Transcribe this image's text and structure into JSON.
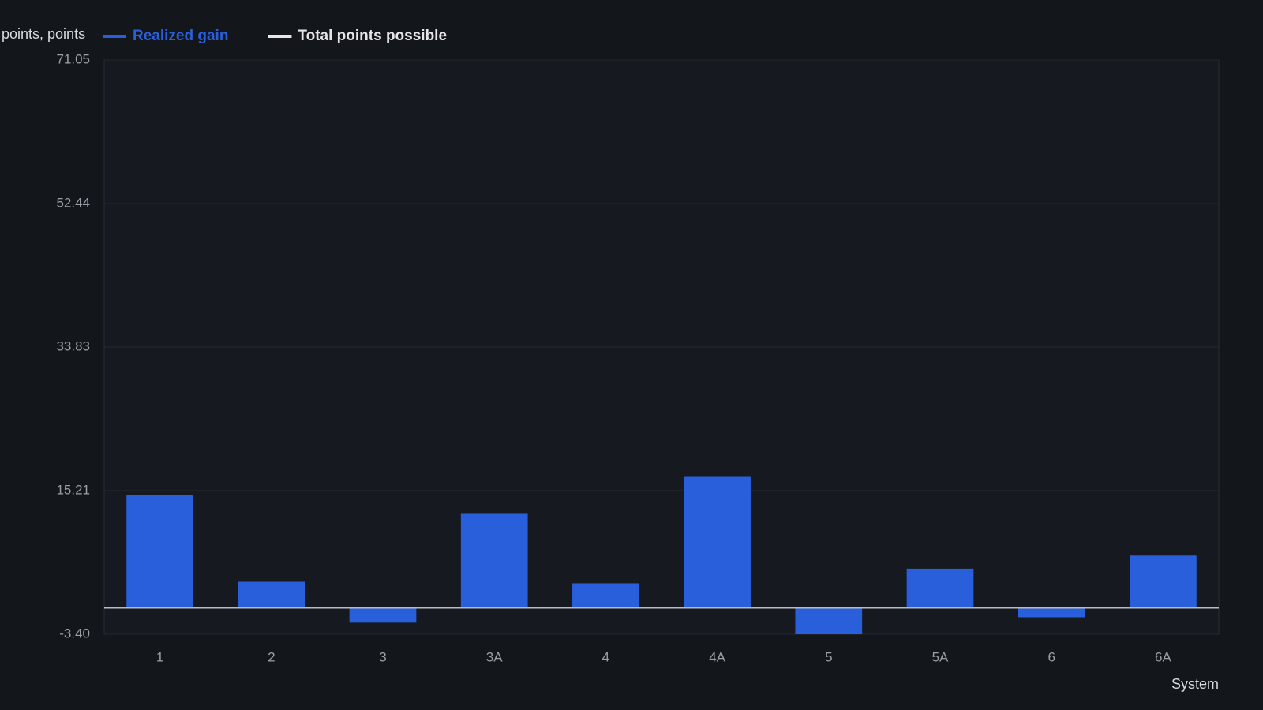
{
  "chart_data": {
    "type": "bar",
    "y_label": "points, points",
    "x_label": "System",
    "categories": [
      "1",
      "2",
      "3",
      "3A",
      "4",
      "4A",
      "5",
      "5A",
      "6",
      "6A"
    ],
    "series": [
      {
        "name": "Realized gain",
        "color": "#2a5fdc",
        "values": [
          14.7,
          3.4,
          -1.9,
          12.3,
          3.2,
          17.0,
          -3.4,
          5.1,
          -1.2,
          6.8
        ]
      },
      {
        "name": "Total points possible",
        "color": "#e6e6e6",
        "values": [
          null,
          null,
          null,
          null,
          null,
          null,
          null,
          null,
          null,
          null
        ]
      }
    ],
    "ylim": [
      -3.4,
      71.05
    ],
    "yticks": [
      {
        "value": -3.4,
        "label": "-3.40"
      },
      15.21,
      33.83,
      52.44,
      71.05
    ],
    "grid": true
  }
}
